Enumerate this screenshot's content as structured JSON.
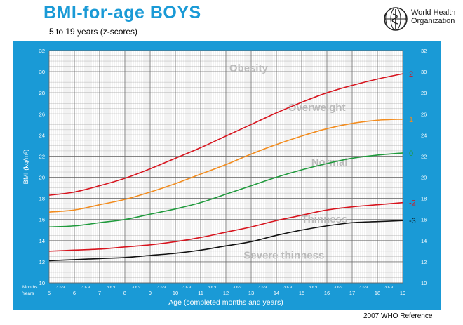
{
  "header": {
    "title": "BMI-for-age  BOYS",
    "subtitle": "5 to 19 years (z-scores)",
    "org_line1": "World Health",
    "org_line2": "Organization",
    "footer": "2007  WHO Reference"
  },
  "colors": {
    "panel_bg": "#1a9ad6",
    "plot_bg": "#ffffff",
    "grid": "#666666",
    "title": "#1a9ad6",
    "zone_text": "#bbbbbb"
  },
  "chart_data": {
    "type": "line",
    "title": "",
    "xlabel": "Age (completed months and years)",
    "ylabel": "BMI (kg/m²)",
    "xlim": [
      5,
      19
    ],
    "ylim": [
      10,
      32
    ],
    "grid": true,
    "row_label_months": "Months",
    "row_label_years": "Years",
    "month_tick_text": "3 6 9",
    "x_ticks": [
      "5",
      "6",
      "7",
      "8",
      "9",
      "10",
      "11",
      "12",
      "13",
      "14",
      "15",
      "16",
      "17",
      "18",
      "19"
    ],
    "y_ticks": [
      "10",
      "12",
      "14",
      "16",
      "18",
      "20",
      "22",
      "24",
      "26",
      "28",
      "30",
      "32"
    ],
    "x": [
      5,
      6,
      7,
      8,
      9,
      10,
      11,
      12,
      13,
      14,
      15,
      16,
      17,
      18,
      19
    ],
    "series": [
      {
        "name": "2",
        "color": "#d7141e",
        "values": [
          18.3,
          18.6,
          19.2,
          19.9,
          20.8,
          21.8,
          22.8,
          23.9,
          25.0,
          26.1,
          27.1,
          28.0,
          28.7,
          29.3,
          29.8
        ]
      },
      {
        "name": "1",
        "color": "#f28c1e",
        "values": [
          16.7,
          16.9,
          17.4,
          17.9,
          18.6,
          19.4,
          20.3,
          21.2,
          22.2,
          23.1,
          23.9,
          24.6,
          25.1,
          25.4,
          25.5
        ]
      },
      {
        "name": "0",
        "color": "#1f9a3c",
        "values": [
          15.3,
          15.4,
          15.7,
          16.0,
          16.5,
          17.0,
          17.6,
          18.4,
          19.2,
          20.0,
          20.7,
          21.3,
          21.8,
          22.1,
          22.3
        ]
      },
      {
        "name": "-2",
        "color": "#d7141e",
        "values": [
          13.0,
          13.1,
          13.2,
          13.4,
          13.6,
          13.9,
          14.3,
          14.8,
          15.3,
          15.9,
          16.4,
          16.9,
          17.2,
          17.4,
          17.6
        ]
      },
      {
        "name": "-3",
        "color": "#111111",
        "values": [
          12.1,
          12.2,
          12.3,
          12.4,
          12.6,
          12.8,
          13.1,
          13.5,
          13.9,
          14.5,
          15.0,
          15.4,
          15.7,
          15.8,
          15.9
        ]
      }
    ],
    "zone_labels": [
      {
        "text": "Obesity",
        "x": 12.9,
        "y": 30.0
      },
      {
        "text": "Overweight",
        "x": 15.6,
        "y": 26.3
      },
      {
        "text": "Normal",
        "x": 16.1,
        "y": 21.1
      },
      {
        "text": "Thinness",
        "x": 15.9,
        "y": 15.7
      },
      {
        "text": "Severe thinness",
        "x": 14.3,
        "y": 12.3
      }
    ]
  }
}
